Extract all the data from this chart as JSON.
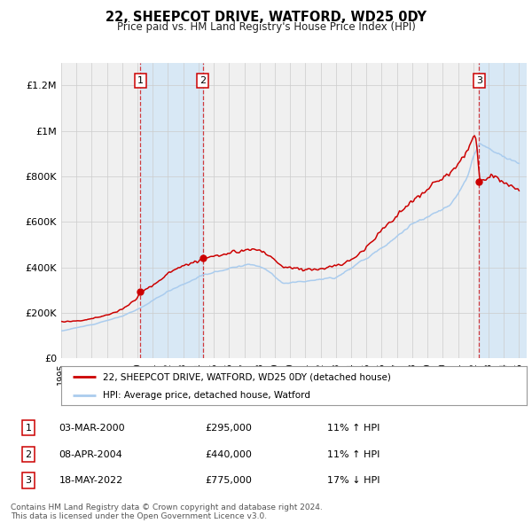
{
  "title": "22, SHEEPCOT DRIVE, WATFORD, WD25 0DY",
  "subtitle": "Price paid vs. HM Land Registry's House Price Index (HPI)",
  "ylim": [
    0,
    1300000
  ],
  "yticks": [
    0,
    200000,
    400000,
    600000,
    800000,
    1000000,
    1200000
  ],
  "ytick_labels": [
    "£0",
    "£200K",
    "£400K",
    "£600K",
    "£800K",
    "£1M",
    "£1.2M"
  ],
  "xlim_start": 1995,
  "xlim_end": 2025.5,
  "hpi_color": "#aaccee",
  "price_color": "#cc0000",
  "shading_color": "#d8e8f5",
  "plot_bg_color": "#f0f0f0",
  "grid_color": "#cccccc",
  "transactions": [
    {
      "year": 2000.18,
      "price": 295000,
      "label": "1"
    },
    {
      "year": 2004.27,
      "price": 440000,
      "label": "2"
    },
    {
      "year": 2022.38,
      "price": 775000,
      "label": "3"
    }
  ],
  "transaction_table": [
    {
      "num": "1",
      "date": "03-MAR-2000",
      "price": "£295,000",
      "hpi": "11% ↑ HPI"
    },
    {
      "num": "2",
      "date": "08-APR-2004",
      "price": "£440,000",
      "hpi": "11% ↑ HPI"
    },
    {
      "num": "3",
      "date": "18-MAY-2022",
      "price": "£775,000",
      "hpi": "17% ↓ HPI"
    }
  ],
  "legend_label_red": "22, SHEEPCOT DRIVE, WATFORD, WD25 0DY (detached house)",
  "legend_label_blue": "HPI: Average price, detached house, Watford",
  "footnote": "Contains HM Land Registry data © Crown copyright and database right 2024.\nThis data is licensed under the Open Government Licence v3.0.",
  "background_color": "#ffffff"
}
